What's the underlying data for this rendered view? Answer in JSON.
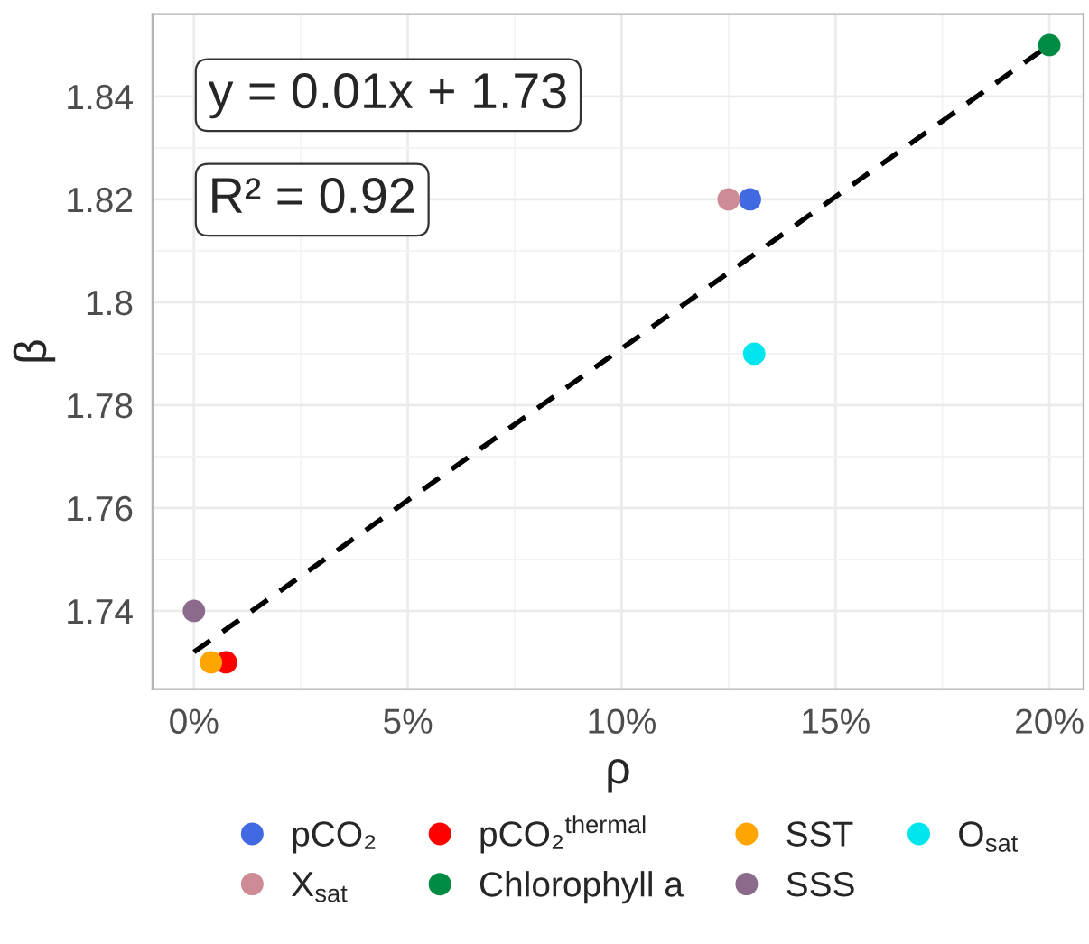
{
  "chart_data": {
    "type": "scatter",
    "xlabel": "ρ",
    "ylabel": "β",
    "series": [
      {
        "name": "pCO₂",
        "color": "#4169e1",
        "x": [
          13.0
        ],
        "values": [
          1.82
        ]
      },
      {
        "name": "pCO₂$^{thermal}$",
        "color": "#ff0000",
        "x": [
          0.75
        ],
        "values": [
          1.73
        ]
      },
      {
        "name": "SST",
        "color": "#ffa500",
        "x": [
          0.4
        ],
        "values": [
          1.73
        ]
      },
      {
        "name": "O$_{sat}$",
        "color": "#00e5ee",
        "x": [
          13.1
        ],
        "values": [
          1.79
        ]
      },
      {
        "name": "X$_{sat}$",
        "color": "#cd8c95",
        "x": [
          12.5
        ],
        "values": [
          1.82
        ]
      },
      {
        "name": "Chlorophyll a",
        "color": "#008b45",
        "x": [
          20.0
        ],
        "values": [
          1.85
        ]
      },
      {
        "name": "SSS",
        "color": "#8b6a8b",
        "x": [
          0.0
        ],
        "values": [
          1.74
        ]
      },
      {
        "type": "line",
        "color": "#000000",
        "line_style": "dashed",
        "marker": "none",
        "x": [
          0.0,
          20.0
        ],
        "values": [
          1.732,
          1.85
        ]
      }
    ],
    "annotations": [
      "y = 0.01x + 1.73",
      "R² = 0.92"
    ],
    "xlim": [
      -0.97,
      20.8
    ],
    "ylim": [
      1.7248,
      1.856
    ],
    "xticks": [
      {
        "value": 0,
        "label": "0%"
      },
      {
        "value": 5,
        "label": "5%"
      },
      {
        "value": 10,
        "label": "10%"
      },
      {
        "value": 15,
        "label": "15%"
      },
      {
        "value": 20,
        "label": "20%"
      }
    ],
    "yticks": [
      1.74,
      1.76,
      1.78,
      1.8,
      1.82,
      1.84
    ],
    "grid": true,
    "legend": "bottom",
    "marker": "circle"
  }
}
